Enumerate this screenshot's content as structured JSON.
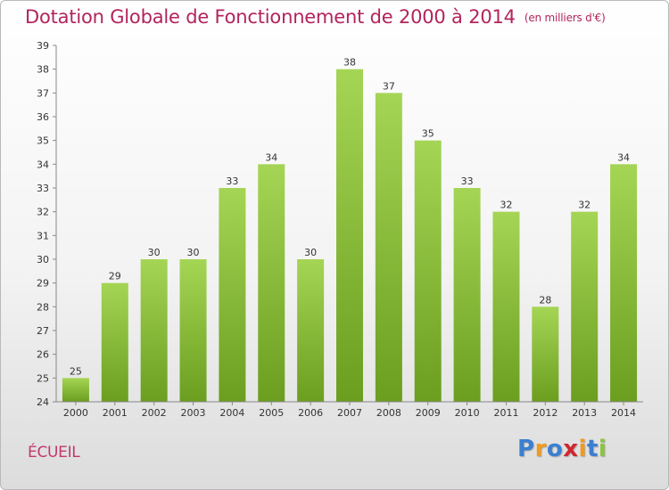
{
  "header": {
    "title": "Dotation Globale de Fonctionnement de 2000 à 2014",
    "unit": "(en milliers d'€)"
  },
  "footer": {
    "commune": "ÉCUEIL",
    "logo_letters": [
      {
        "ch": "P",
        "color": "#3a7fd1"
      },
      {
        "ch": "r",
        "color": "#f29a1d"
      },
      {
        "ch": "o",
        "color": "#3a7fd1"
      },
      {
        "ch": "x",
        "color": "#d1262f"
      },
      {
        "ch": "i",
        "color": "#f29a1d"
      },
      {
        "ch": "t",
        "color": "#3a7fd1"
      },
      {
        "ch": "i",
        "color": "#8bc43f"
      }
    ]
  },
  "chart_data": {
    "type": "bar",
    "categories": [
      "2000",
      "2001",
      "2002",
      "2003",
      "2004",
      "2005",
      "2006",
      "2007",
      "2008",
      "2009",
      "2010",
      "2011",
      "2012",
      "2013",
      "2014"
    ],
    "values": [
      25,
      29,
      30,
      30,
      33,
      34,
      30,
      38,
      37,
      35,
      33,
      32,
      28,
      32,
      34
    ],
    "title": "Dotation Globale de Fonctionnement de 2000 à 2014",
    "xlabel": "",
    "ylabel": "",
    "ylim": [
      24,
      39
    ],
    "yticks": [
      24,
      25,
      26,
      27,
      28,
      29,
      30,
      31,
      32,
      33,
      34,
      35,
      36,
      37,
      38,
      39
    ],
    "grid": false,
    "bar_color_light": "#a5d555",
    "bar_color_dark": "#6b9e1f",
    "axis_color": "#888888",
    "label_color": "#333333"
  }
}
